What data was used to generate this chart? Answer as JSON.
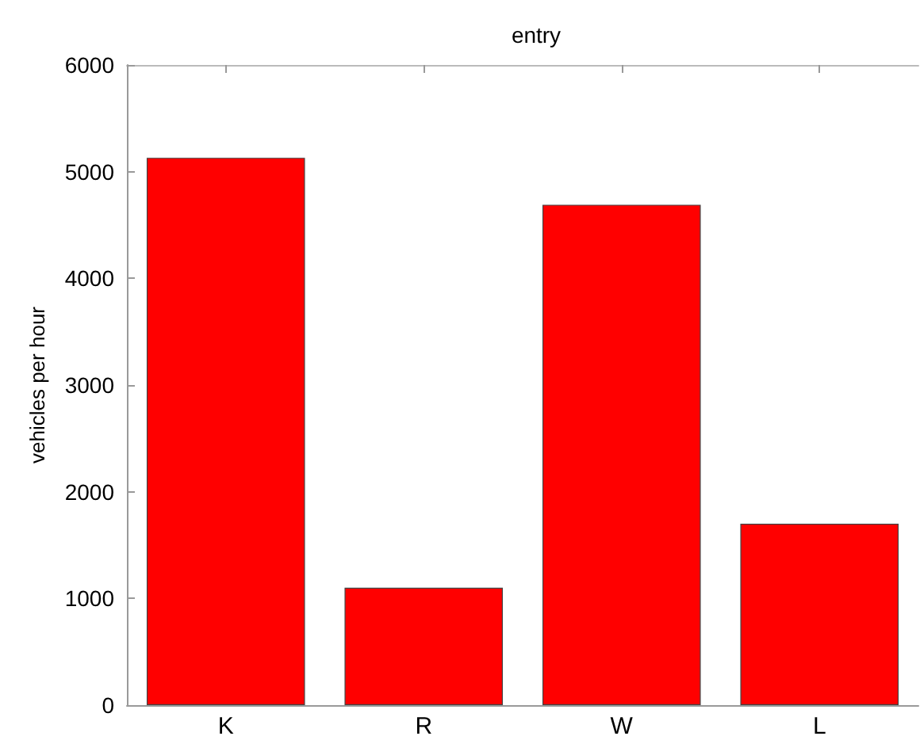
{
  "chart_data": {
    "type": "bar",
    "title": "entry",
    "ylabel": "vehicles per hour",
    "categories": [
      "K",
      "R",
      "W",
      "L"
    ],
    "values": [
      5130,
      1100,
      4690,
      1700
    ],
    "color": "#ff0000",
    "ylim": [
      0,
      6000
    ],
    "yticks": [
      0,
      1000,
      2000,
      3000,
      4000,
      5000,
      6000
    ],
    "grid": false
  }
}
